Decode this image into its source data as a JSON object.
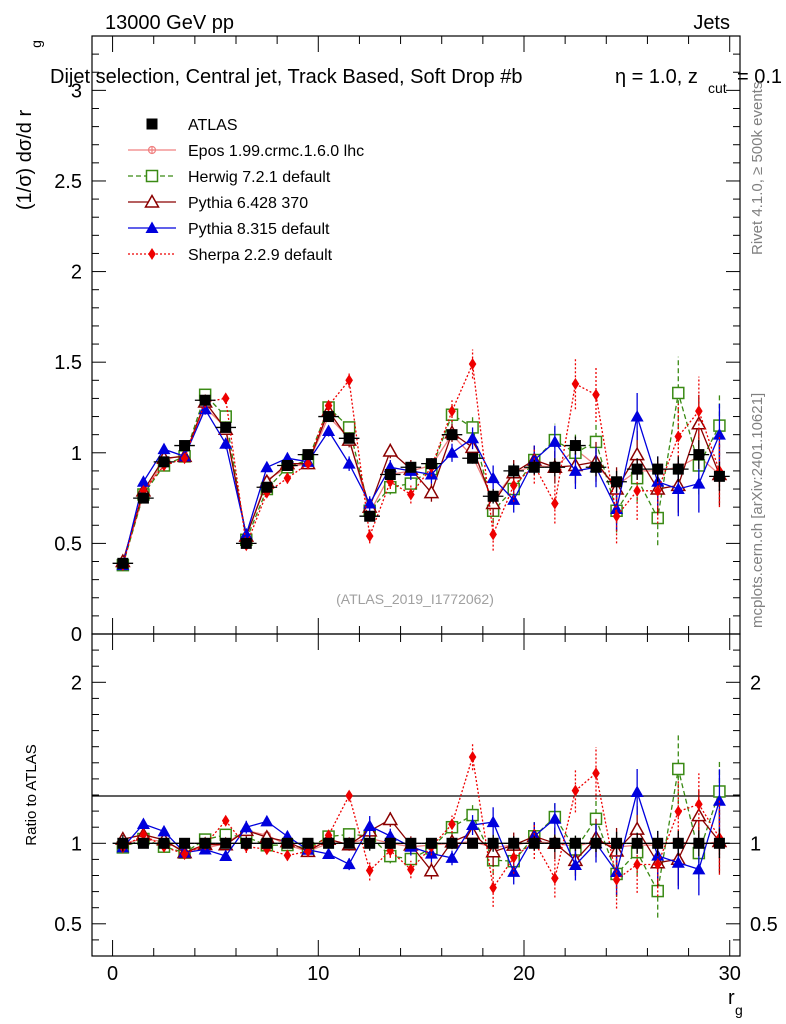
{
  "header": {
    "energy": "13000 GeV pp",
    "category": "Jets"
  },
  "title_line": "Dijet selection, Central jet, Track Based, Soft Drop #b",
  "title_suffix": {
    "eta": "η = 1.0, z",
    "sub": "cut",
    "tail": " = 0.1"
  },
  "analysis_id": "(ATLAS_2019_I1772062)",
  "side_labels": {
    "rivet": "Rivet 4.1.0, ≥ 500k events",
    "mcplots": "mcplots.cern.ch [arXiv:2401.10621]"
  },
  "axes": {
    "ylabel_main": "(1/σ) dσ/d r",
    "ylabel_main_sub": "g",
    "ylabel_ratio": "Ratio to ATLAS",
    "xlabel": "r",
    "xlabel_sub": "g",
    "main_ticks": [
      "0",
      "0.5",
      "1",
      "1.5",
      "2",
      "2.5",
      "3"
    ],
    "ratio_ticks": [
      "0.5",
      "1",
      "2"
    ],
    "x_ticks": [
      "0",
      "10",
      "20",
      "30"
    ]
  },
  "chart_data": {
    "type": "scatter",
    "x_range": [
      -1,
      30.5
    ],
    "y_range_main": [
      0,
      3.3
    ],
    "y_range_ratio": [
      0.3,
      2.3
    ],
    "x": [
      0.5,
      1.5,
      2.5,
      3.5,
      4.5,
      5.5,
      6.5,
      7.5,
      8.5,
      9.5,
      10.5,
      11.5,
      12.5,
      13.5,
      14.5,
      15.5,
      16.5,
      17.5,
      18.5,
      19.5,
      20.5,
      21.5,
      22.5,
      23.5,
      24.5,
      25.5,
      26.5,
      27.5,
      28.5,
      29.5
    ],
    "series": [
      {
        "name": "ATLAS",
        "color": "#000000",
        "marker": "square-filled",
        "line": "none",
        "values": [
          0.39,
          0.75,
          0.95,
          1.04,
          1.29,
          1.14,
          0.5,
          0.81,
          0.93,
          0.99,
          1.2,
          1.08,
          0.65,
          0.88,
          0.92,
          0.94,
          1.1,
          0.97,
          0.76,
          0.9,
          0.92,
          0.92,
          1.04,
          0.92,
          0.84,
          0.91,
          0.91,
          0.91,
          0.99,
          0.87
        ],
        "errors": [
          0.02,
          0.02,
          0.02,
          0.02,
          0.02,
          0.02,
          0.02,
          0.02,
          0.02,
          0.02,
          0.02,
          0.02,
          0.03,
          0.03,
          0.03,
          0.03,
          0.03,
          0.03,
          0.04,
          0.04,
          0.04,
          0.05,
          0.05,
          0.05,
          0.06,
          0.06,
          0.07,
          0.07,
          0.08,
          0.08
        ]
      },
      {
        "name": "Epos 1.99.crmc.1.6.0 lhc",
        "color": "#f08080",
        "marker": "cross",
        "line": "solid",
        "values": [
          0.39,
          0.77,
          0.96,
          0.99,
          1.25,
          1.14,
          0.54,
          0.85,
          0.92,
          0.94,
          1.2,
          1.08,
          0.67,
          0.88,
          0.9,
          0.93,
          1.1,
          0.98,
          0.74,
          0.89,
          0.93,
          0.92,
          1.02,
          0.93,
          0.82,
          0.9,
          0.9,
          0.92,
          0.98,
          0.88
        ],
        "errors": [
          0.01,
          0.01,
          0.01,
          0.01,
          0.01,
          0.01,
          0.01,
          0.01,
          0.01,
          0.01,
          0.01,
          0.01,
          0.02,
          0.02,
          0.02,
          0.02,
          0.02,
          0.02,
          0.03,
          0.03,
          0.03,
          0.03,
          0.04,
          0.04,
          0.05,
          0.05,
          0.05,
          0.06,
          0.06,
          0.06
        ]
      },
      {
        "name": "Herwig 7.2.1 default",
        "color": "#3a8a14",
        "marker": "square-open",
        "line": "dashed",
        "values": [
          0.38,
          0.77,
          0.93,
          0.98,
          1.32,
          1.2,
          0.52,
          0.8,
          0.92,
          0.96,
          1.25,
          1.14,
          0.68,
          0.81,
          0.83,
          0.91,
          1.21,
          1.14,
          0.68,
          0.8,
          0.96,
          1.07,
          1.0,
          1.06,
          0.68,
          0.86,
          0.64,
          1.33,
          0.93,
          1.15
        ],
        "errors": [
          0.01,
          0.02,
          0.02,
          0.02,
          0.03,
          0.03,
          0.02,
          0.02,
          0.03,
          0.03,
          0.03,
          0.04,
          0.04,
          0.04,
          0.04,
          0.05,
          0.05,
          0.06,
          0.07,
          0.07,
          0.08,
          0.09,
          0.1,
          0.11,
          0.12,
          0.13,
          0.15,
          0.2,
          0.16,
          0.17
        ]
      },
      {
        "name": "Pythia 6.428 370",
        "color": "#8b0000",
        "marker": "triangle-open",
        "line": "solid",
        "values": [
          0.4,
          0.79,
          0.97,
          0.98,
          1.28,
          1.13,
          0.54,
          0.84,
          0.94,
          0.94,
          1.23,
          1.07,
          0.7,
          1.01,
          0.91,
          0.78,
          1.11,
          1.03,
          0.72,
          0.89,
          0.96,
          0.92,
          0.93,
          0.95,
          0.8,
          0.99,
          0.8,
          0.82,
          1.16,
          0.88
        ],
        "errors": [
          0.01,
          0.02,
          0.02,
          0.02,
          0.03,
          0.03,
          0.02,
          0.02,
          0.03,
          0.03,
          0.03,
          0.04,
          0.04,
          0.04,
          0.05,
          0.05,
          0.05,
          0.06,
          0.07,
          0.07,
          0.08,
          0.09,
          0.1,
          0.11,
          0.12,
          0.13,
          0.14,
          0.15,
          0.16,
          0.17
        ]
      },
      {
        "name": "Pythia 8.315 default",
        "color": "#0000dd",
        "marker": "triangle-filled",
        "line": "solid",
        "values": [
          0.38,
          0.84,
          1.02,
          0.98,
          1.24,
          1.05,
          0.55,
          0.92,
          0.97,
          0.95,
          1.12,
          0.94,
          0.72,
          0.92,
          0.9,
          0.88,
          1.0,
          1.08,
          0.86,
          0.74,
          0.96,
          1.06,
          0.9,
          0.92,
          0.69,
          1.2,
          0.84,
          0.8,
          0.83,
          1.1
        ],
        "errors": [
          0.01,
          0.02,
          0.02,
          0.02,
          0.03,
          0.03,
          0.02,
          0.02,
          0.03,
          0.03,
          0.03,
          0.04,
          0.04,
          0.04,
          0.05,
          0.05,
          0.05,
          0.06,
          0.07,
          0.07,
          0.08,
          0.09,
          0.1,
          0.11,
          0.12,
          0.13,
          0.14,
          0.15,
          0.16,
          0.17
        ]
      },
      {
        "name": "Sherpa 2.2.9 default",
        "color": "#ee0000",
        "marker": "diamond-filled",
        "line": "dotted",
        "values": [
          0.38,
          0.79,
          0.93,
          0.97,
          1.28,
          1.3,
          0.49,
          0.78,
          0.86,
          0.94,
          1.26,
          1.4,
          0.54,
          0.84,
          0.77,
          0.92,
          1.23,
          1.49,
          0.55,
          0.82,
          0.93,
          0.72,
          1.38,
          1.32,
          0.65,
          0.79,
          0.79,
          1.09,
          1.23,
          0.9
        ],
        "errors": [
          0.01,
          0.02,
          0.02,
          0.02,
          0.03,
          0.03,
          0.02,
          0.02,
          0.03,
          0.03,
          0.03,
          0.04,
          0.04,
          0.04,
          0.05,
          0.05,
          0.06,
          0.08,
          0.09,
          0.09,
          0.1,
          0.11,
          0.14,
          0.15,
          0.15,
          0.16,
          0.18,
          0.18,
          0.19,
          0.2
        ]
      }
    ]
  }
}
